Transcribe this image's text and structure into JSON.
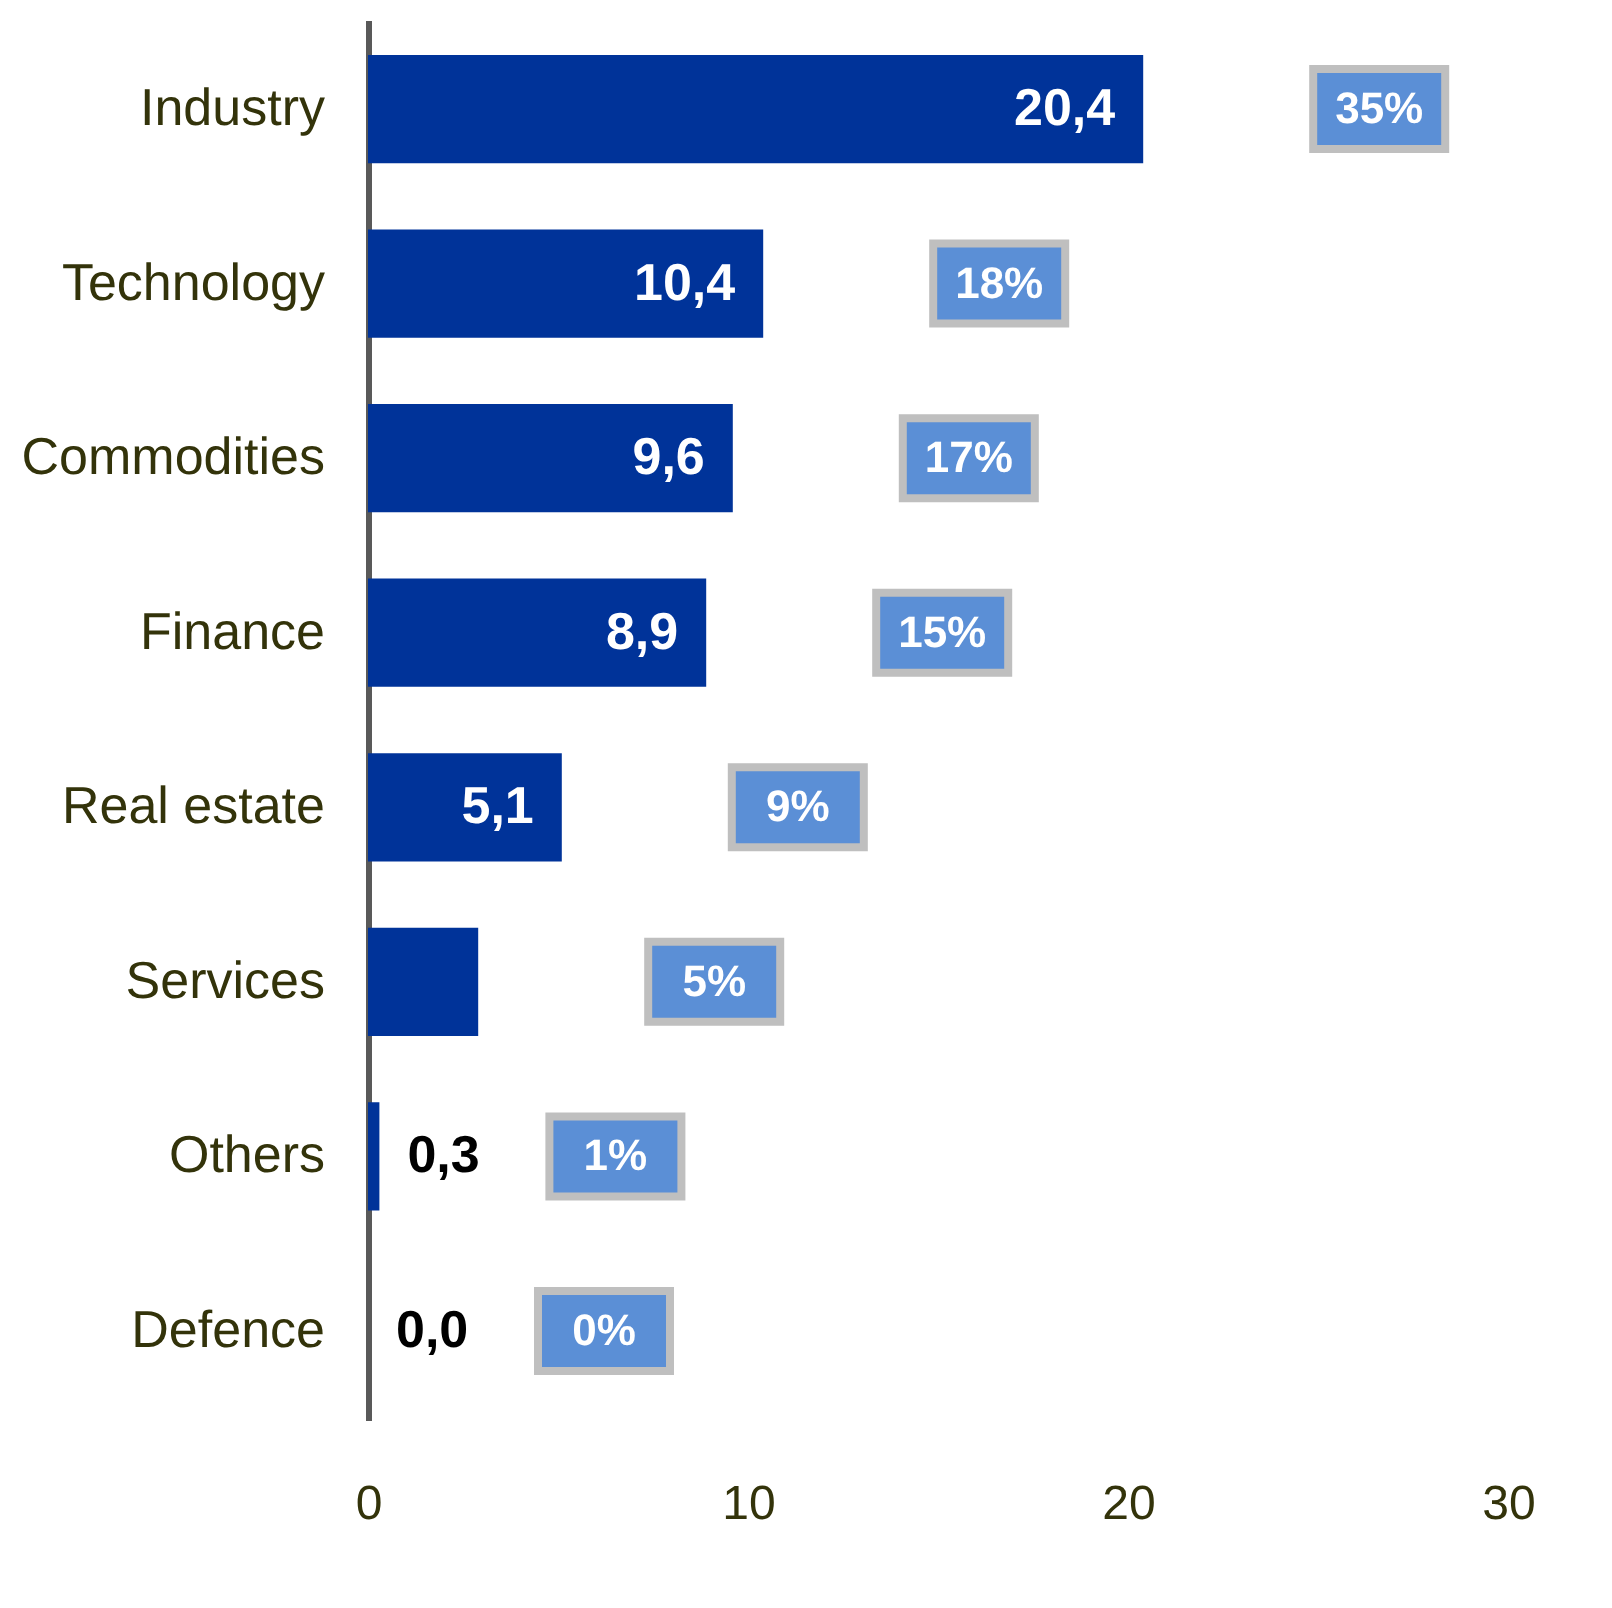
{
  "chart_data": {
    "type": "bar",
    "orientation": "horizontal",
    "categories": [
      "Industry",
      "Technology",
      "Commodities",
      "Finance",
      "Real estate",
      "Services",
      "Others",
      "Defence"
    ],
    "values": [
      20.4,
      10.4,
      9.6,
      8.9,
      5.1,
      2.9,
      0.3,
      0.0
    ],
    "value_labels": [
      "20,4",
      "10,4",
      "9,6",
      "8,9",
      "5,1",
      null,
      "0,3",
      "0,0"
    ],
    "color": "#003399",
    "xlim": [
      0,
      30
    ],
    "xticks": [
      0,
      10,
      20,
      30
    ],
    "grid": false,
    "annotations": [
      "35%",
      "18%",
      "17%",
      "15%",
      "9%",
      "5%",
      "1%",
      "0%"
    ]
  }
}
